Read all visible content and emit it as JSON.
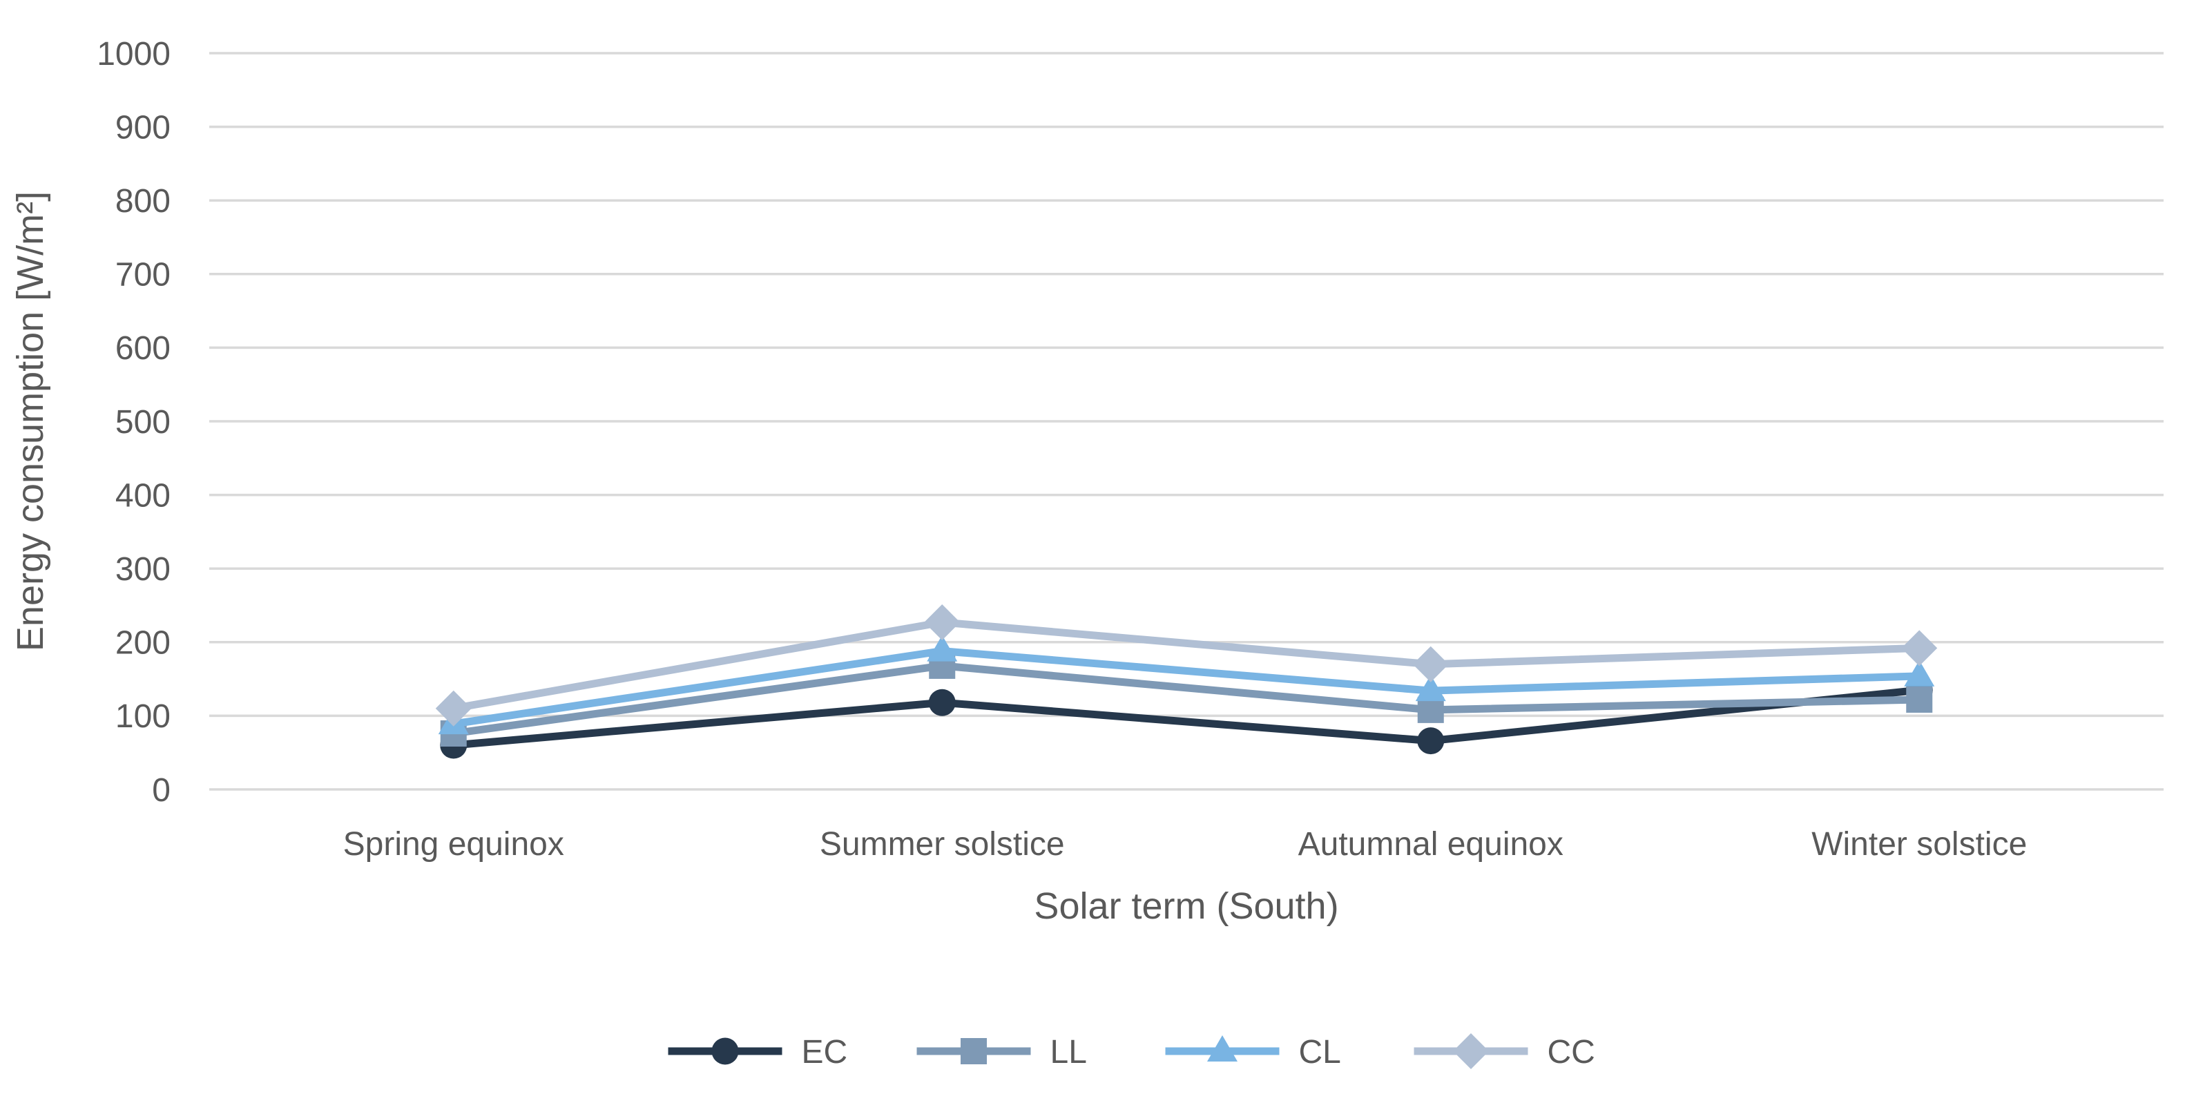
{
  "chart_data": {
    "type": "line",
    "title": "",
    "categories": [
      "Spring equinox",
      "Summer solstice",
      "Autumnal equinox",
      "Winter solstice"
    ],
    "series": [
      {
        "name": "EC",
        "marker": "circle",
        "color": "#26384C",
        "values": [
          60,
          118,
          66,
          135
        ]
      },
      {
        "name": "LL",
        "marker": "square",
        "color": "#7E99B5",
        "values": [
          76,
          168,
          108,
          122
        ]
      },
      {
        "name": "CL",
        "marker": "triangle",
        "color": "#79B4E3",
        "values": [
          89,
          188,
          134,
          154
        ]
      },
      {
        "name": "CC",
        "marker": "diamond",
        "color": "#B0BFD4",
        "values": [
          110,
          227,
          170,
          192
        ]
      }
    ],
    "xlabel": "Solar term (South)",
    "ylabel": "Energy consumption [W/m²]",
    "ylim": [
      0,
      1000
    ],
    "yticks": [
      0,
      100,
      200,
      300,
      400,
      500,
      600,
      700,
      800,
      900,
      1000
    ],
    "grid": "horizontal",
    "legend_position": "bottom",
    "legend": [
      "EC",
      "LL",
      "CL",
      "CC"
    ]
  },
  "colors": {
    "gridline": "#D9D9D9",
    "axis_text": "#595959",
    "background": "#FFFFFF"
  }
}
